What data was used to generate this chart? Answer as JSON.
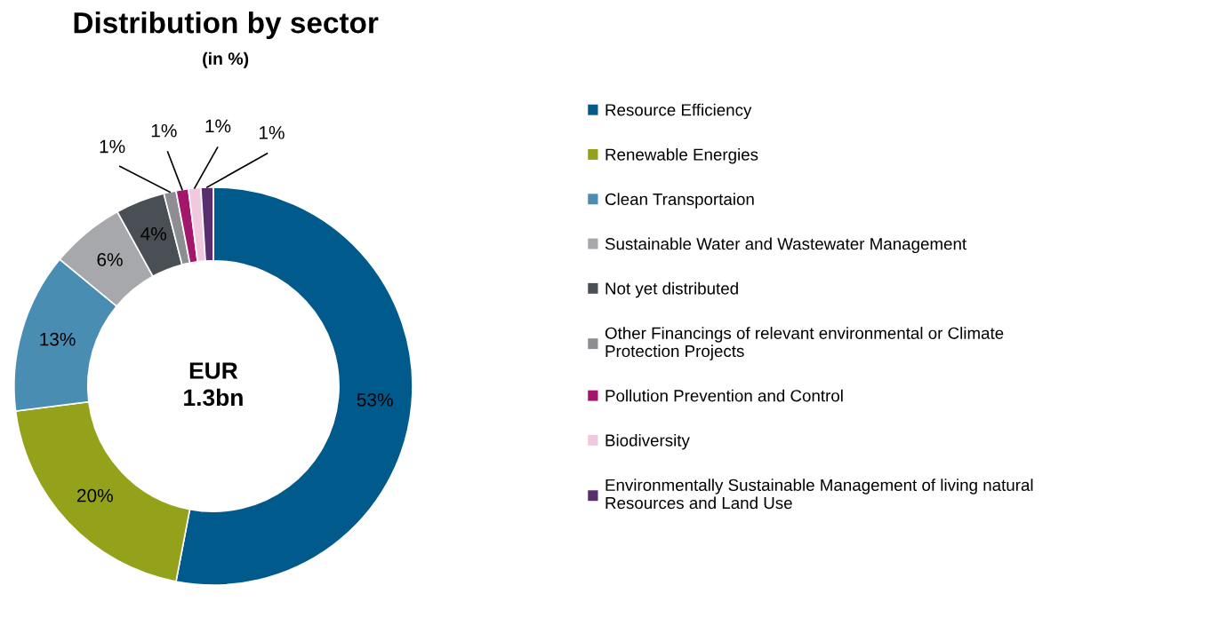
{
  "chart_data": {
    "type": "donut",
    "title": "Distribution by sector",
    "subtitle": "(in %)",
    "categories": [
      "Resource Efficiency",
      "Renewable Energies",
      "Clean Transportaion",
      "Sustainable Water and Wastewater Management",
      "Not yet distributed",
      "Other Financings of relevant environmental or Climate\nProtection Projects",
      "Pollution Prevention and Control",
      "Biodiversity",
      "Environmentally Sustainable Management of living natural\nResources and Land Use"
    ],
    "values": [
      53,
      20,
      13,
      6,
      4,
      1,
      1,
      1,
      1
    ],
    "colors": [
      "#005a8c",
      "#94a11a",
      "#4a8db3",
      "#a6a8ab",
      "#4a4f55",
      "#8c8e91",
      "#a3166b",
      "#f0c8e0",
      "#5a2d6e"
    ],
    "value_labels": [
      "53%",
      "20%",
      "13%",
      "6%",
      "4%",
      "1%",
      "1%",
      "1%",
      "1%"
    ],
    "annotations": [
      "EUR\n1.3bn"
    ],
    "legend": "right"
  }
}
